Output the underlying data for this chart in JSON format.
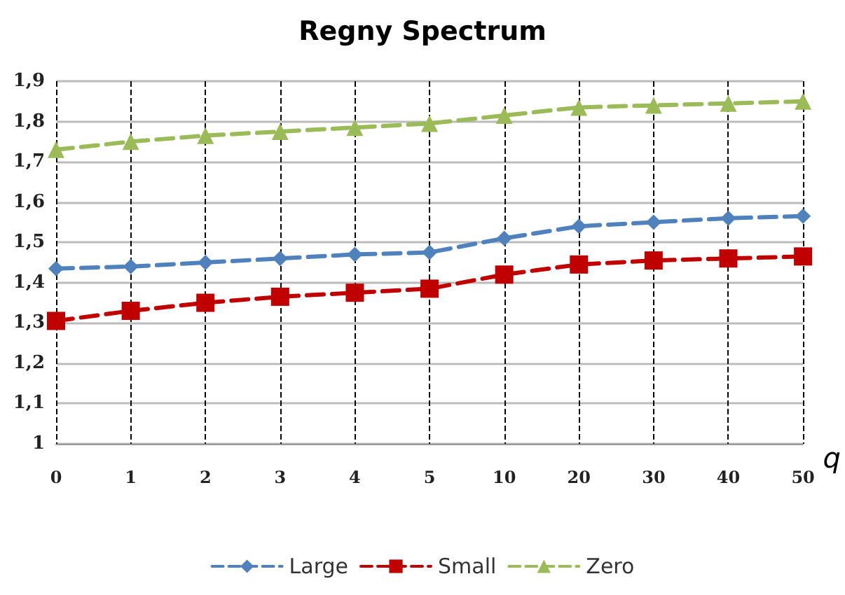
{
  "chart_data": {
    "type": "line",
    "title": "Regny Spectrum",
    "xlabel": "q",
    "categories": [
      "0",
      "1",
      "2",
      "3",
      "4",
      "5",
      "10",
      "20",
      "30",
      "40",
      "50"
    ],
    "series": [
      {
        "name": "Large",
        "color": "#4f81bd",
        "marker": "diamond",
        "values": [
          1.435,
          1.44,
          1.45,
          1.46,
          1.47,
          1.475,
          1.51,
          1.54,
          1.55,
          1.56,
          1.565
        ]
      },
      {
        "name": "Small",
        "color": "#c00000",
        "marker": "square",
        "values": [
          1.305,
          1.33,
          1.35,
          1.365,
          1.375,
          1.385,
          1.42,
          1.445,
          1.455,
          1.46,
          1.465
        ]
      },
      {
        "name": "Zero",
        "color": "#9bbb59",
        "marker": "triangle",
        "values": [
          1.73,
          1.75,
          1.765,
          1.775,
          1.785,
          1.795,
          1.815,
          1.835,
          1.84,
          1.845,
          1.85
        ]
      }
    ],
    "ylim": [
      1,
      1.9
    ],
    "yticks": [
      {
        "value": 1,
        "label": "1"
      },
      {
        "value": 1.1,
        "label": "1,1"
      },
      {
        "value": 1.2,
        "label": "1,2"
      },
      {
        "value": 1.3,
        "label": "1,3"
      },
      {
        "value": 1.4,
        "label": "1,4"
      },
      {
        "value": 1.5,
        "label": "1,5"
      },
      {
        "value": 1.6,
        "label": "1,6"
      },
      {
        "value": 1.7,
        "label": "1,7"
      },
      {
        "value": 1.8,
        "label": "1,8"
      },
      {
        "value": 1.9,
        "label": "1,9"
      }
    ],
    "grid": true,
    "legend": "bottom",
    "line_style": "dashed"
  }
}
